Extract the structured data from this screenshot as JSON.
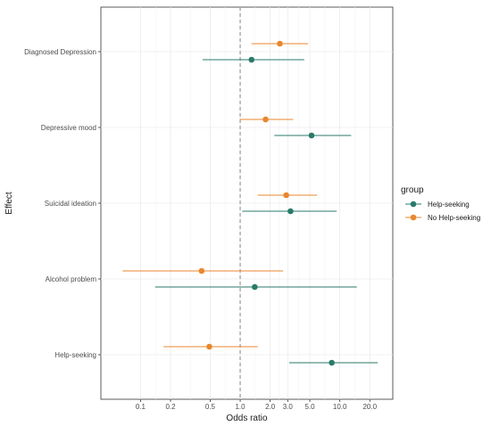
{
  "chart_data": {
    "type": "scatter",
    "subtype": "forest-plot",
    "xlabel": "Odds ratio",
    "ylabel": "Effect",
    "x_scale": "log",
    "xlim": [
      0.04,
      34
    ],
    "x_ticks": [
      0.1,
      0.2,
      0.5,
      1.0,
      2.0,
      3.0,
      5.0,
      10.0,
      20.0
    ],
    "x_tick_labels": [
      "0.1",
      "0.2",
      "0.5",
      "1.0",
      "2.0",
      "3.0",
      "5.0",
      "10.0",
      "20.0"
    ],
    "reference_line": 1.0,
    "grid": true,
    "categories": [
      "Diagnosed Depression",
      "Depressive mood",
      "Suicidal ideation",
      "Alcohol problem",
      "Help-seeking"
    ],
    "legend": {
      "title": "group",
      "position": "right"
    },
    "series": [
      {
        "name": "Help-seeking",
        "color": "#2a7a6a",
        "or": [
          1.3,
          5.2,
          3.2,
          1.4,
          8.3
        ],
        "lower": [
          0.42,
          2.2,
          1.05,
          0.14,
          3.1
        ],
        "upper": [
          4.4,
          13.0,
          9.3,
          14.8,
          24.0
        ]
      },
      {
        "name": "No Help-seeking",
        "color": "#e9872c",
        "or": [
          2.5,
          1.8,
          2.9,
          0.41,
          0.49
        ],
        "lower": [
          1.3,
          0.99,
          1.5,
          0.066,
          0.17
        ],
        "upper": [
          4.8,
          3.4,
          5.9,
          2.7,
          1.5
        ]
      }
    ]
  }
}
